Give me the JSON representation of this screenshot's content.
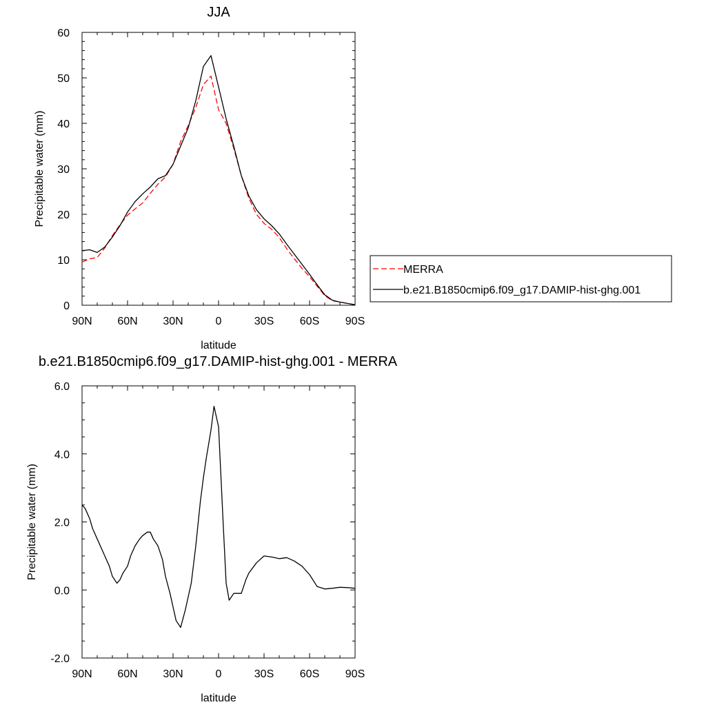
{
  "chart_data": [
    {
      "type": "line",
      "title": "JJA",
      "xlabel": "latitude",
      "ylabel": "Precipitable water (mm)",
      "xlim": [
        90,
        -90
      ],
      "ylim": [
        0,
        60
      ],
      "x_ticks": [
        90,
        60,
        30,
        0,
        -30,
        -60,
        -90
      ],
      "x_tick_labels": [
        "90N",
        "60N",
        "30N",
        "0",
        "30S",
        "60S",
        "90S"
      ],
      "y_ticks": [
        0,
        10,
        20,
        30,
        40,
        50,
        60
      ],
      "y_tick_labels": [
        "0",
        "10",
        "20",
        "30",
        "40",
        "50",
        "60"
      ],
      "grid": false,
      "legend_position": "right",
      "series": [
        {
          "name": "MERRA",
          "color": "#ff0000",
          "dash": "dashed",
          "x": [
            90,
            85,
            80,
            75,
            70,
            65,
            60,
            55,
            50,
            45,
            40,
            35,
            30,
            25,
            20,
            15,
            10,
            5,
            0,
            -5,
            -10,
            -15,
            -20,
            -25,
            -30,
            -35,
            -40,
            -45,
            -50,
            -55,
            -60,
            -65,
            -70,
            -75,
            -80,
            -85,
            -90
          ],
          "values": [
            9.5,
            10.2,
            10.5,
            12.6,
            15.3,
            17.7,
            19.8,
            21.2,
            22.5,
            24.6,
            26.6,
            28.2,
            31.0,
            36.0,
            39.5,
            43.5,
            48.5,
            50.4,
            43.0,
            40.0,
            34.5,
            28.5,
            23.5,
            20.0,
            18.0,
            16.7,
            14.9,
            12.4,
            10.2,
            8.1,
            6.3,
            4.2,
            2.1,
            1.0,
            0.7,
            0.4,
            0.1
          ]
        },
        {
          "name": "b.e21.B1850cmip6.f09_g17.DAMIP-hist-ghg.001",
          "color": "#000000",
          "dash": "solid",
          "x": [
            90,
            85,
            80,
            75,
            70,
            65,
            60,
            55,
            50,
            45,
            40,
            35,
            30,
            25,
            20,
            15,
            10,
            5,
            0,
            -5,
            -10,
            -15,
            -20,
            -25,
            -30,
            -35,
            -40,
            -45,
            -50,
            -55,
            -60,
            -65,
            -70,
            -75,
            -80,
            -85,
            -90
          ],
          "values": [
            12.0,
            12.2,
            11.6,
            12.8,
            15.0,
            17.5,
            20.5,
            22.8,
            24.5,
            26.0,
            27.8,
            28.5,
            31.0,
            35.0,
            39.0,
            45.0,
            52.5,
            54.9,
            48.0,
            41.0,
            35.0,
            28.5,
            24.0,
            21.0,
            19.0,
            17.5,
            15.7,
            13.4,
            11.2,
            9.0,
            6.8,
            4.5,
            2.3,
            1.1,
            0.7,
            0.4,
            0.1
          ]
        }
      ]
    },
    {
      "type": "line",
      "title": "b.e21.B1850cmip6.f09_g17.DAMIP-hist-ghg.001 - MERRA",
      "xlabel": "latitude",
      "ylabel": "Precipitable water (mm)",
      "xlim": [
        90,
        -90
      ],
      "ylim": [
        -2,
        6
      ],
      "x_ticks": [
        90,
        60,
        30,
        0,
        -30,
        -60,
        -90
      ],
      "x_tick_labels": [
        "90N",
        "60N",
        "30N",
        "0",
        "30S",
        "60S",
        "90S"
      ],
      "y_ticks": [
        -2,
        0,
        2,
        4,
        6
      ],
      "y_tick_labels": [
        "-2.0",
        "0.0",
        "2.0",
        "4.0",
        "6.0"
      ],
      "grid": false,
      "series": [
        {
          "color": "#000000",
          "dash": "solid",
          "x": [
            90,
            88,
            85,
            83,
            80,
            77,
            75,
            72,
            70,
            67,
            65,
            63,
            60,
            58,
            55,
            52,
            50,
            47,
            45,
            43,
            40,
            37,
            35,
            32,
            30,
            28,
            25,
            22,
            20,
            18,
            15,
            12,
            10,
            8,
            5,
            3,
            0,
            -3,
            -5,
            -7,
            -10,
            -12,
            -15,
            -18,
            -20,
            -25,
            -30,
            -35,
            -40,
            -45,
            -50,
            -55,
            -60,
            -65,
            -70,
            -75,
            -80,
            -85,
            -90
          ],
          "values": [
            2.5,
            2.4,
            2.1,
            1.8,
            1.5,
            1.2,
            1.0,
            0.7,
            0.4,
            0.2,
            0.3,
            0.5,
            0.7,
            1.0,
            1.3,
            1.5,
            1.6,
            1.7,
            1.7,
            1.5,
            1.3,
            0.9,
            0.4,
            -0.1,
            -0.5,
            -0.9,
            -1.1,
            -0.6,
            -0.2,
            0.2,
            1.3,
            2.6,
            3.3,
            3.9,
            4.7,
            5.4,
            4.8,
            2.0,
            0.2,
            -0.3,
            -0.1,
            -0.1,
            -0.1,
            0.3,
            0.5,
            0.8,
            1.0,
            0.97,
            0.92,
            0.95,
            0.85,
            0.7,
            0.45,
            0.1,
            0.03,
            0.05,
            0.08,
            0.07,
            0.05
          ]
        }
      ]
    }
  ]
}
